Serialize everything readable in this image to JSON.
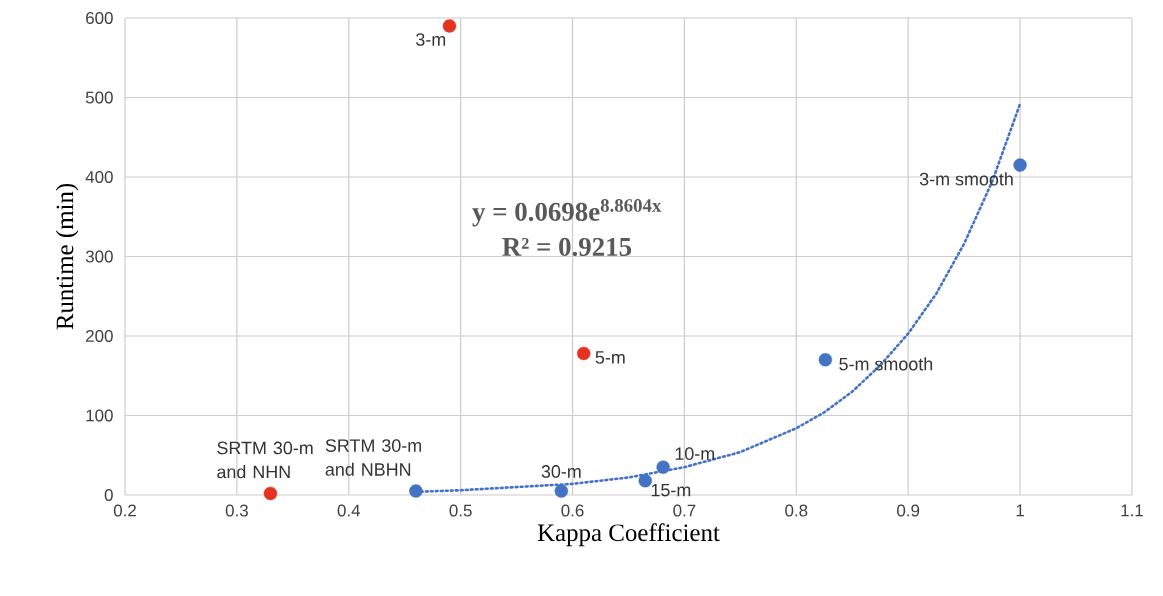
{
  "chart_data": {
    "type": "scatter",
    "xlabel": "Kappa Coefficient",
    "ylabel": "Runtime (min)",
    "xlim": [
      0.2,
      1.1
    ],
    "ylim": [
      0,
      600
    ],
    "xticks": [
      0.2,
      0.3,
      0.4,
      0.5,
      0.6,
      0.7,
      0.8,
      0.9,
      1,
      1.1
    ],
    "yticks": [
      0,
      100,
      200,
      300,
      400,
      500,
      600
    ],
    "grid": true,
    "marker": "circle",
    "series": [
      {
        "color": "#e53323",
        "x": [
          0.33,
          0.49,
          0.61
        ],
        "values": [
          2,
          590,
          178
        ]
      },
      {
        "color": "#4472c4",
        "x": [
          0.46,
          0.59,
          0.665,
          0.681,
          0.826,
          1.0
        ],
        "values": [
          5,
          5,
          18,
          35,
          170,
          415
        ]
      },
      {
        "type": "line",
        "color": "#4472c4",
        "marker": "none",
        "line_style": "dotted",
        "x": [
          0.46,
          0.5,
          0.6,
          0.65,
          0.7,
          0.75,
          0.8,
          0.825,
          0.85,
          0.875,
          0.9,
          0.925,
          0.95,
          0.975,
          1.0
        ],
        "values": [
          4,
          6,
          14,
          22,
          35,
          54,
          84,
          104,
          130,
          163,
          203,
          253,
          316,
          394,
          492
        ]
      }
    ],
    "annotations": [
      {
        "text": "3-m",
        "x": 0.49,
        "y": 590
      },
      {
        "text": "5-m",
        "x": 0.61,
        "y": 178
      },
      {
        "text": "SRTM 30-m and NHN",
        "x": 0.33,
        "y": 2
      },
      {
        "text": "SRTM 30-m and NBHN",
        "x": 0.46,
        "y": 5
      },
      {
        "text": "30-m",
        "x": 0.59,
        "y": 5
      },
      {
        "text": "10-m",
        "x": 0.681,
        "y": 35
      },
      {
        "text": "15-m",
        "x": 0.665,
        "y": 18
      },
      {
        "text": "5-m smooth",
        "x": 0.826,
        "y": 170
      },
      {
        "text": "3-m smooth",
        "x": 1.0,
        "y": 415
      },
      "**y = 0.0698e$^{8.8604x}$**",
      "**R² = 0.9215**"
    ]
  }
}
